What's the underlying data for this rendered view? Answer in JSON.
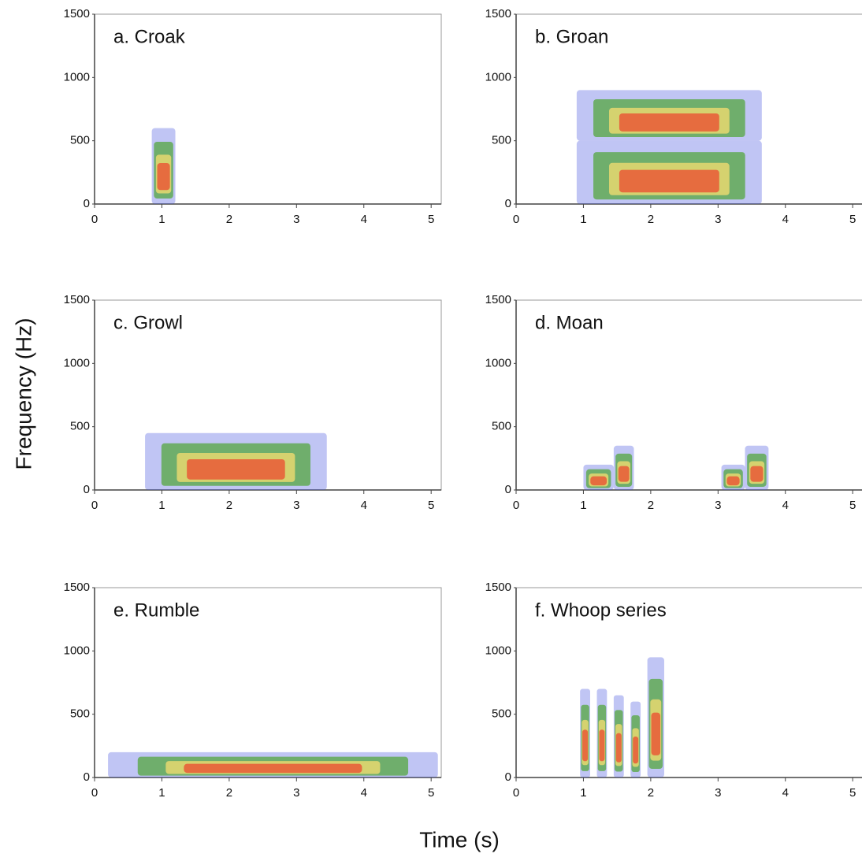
{
  "x_label": "Time (s)",
  "y_label": "Frequency (Hz)",
  "chart_data": [
    {
      "type": "spectrogram",
      "title": "a. Croak",
      "xlim": [
        0,
        5.15
      ],
      "ylim": [
        0,
        1500
      ],
      "xticks": [
        0,
        1,
        2,
        3,
        4,
        5
      ],
      "yticks": [
        0,
        500,
        1000,
        1500
      ],
      "colors": [
        "#4a5ae0",
        "#5aa84a",
        "#e8d870",
        "#e8603a"
      ],
      "calls": [
        {
          "start": 0.85,
          "end": 1.2,
          "low": 0,
          "high": 600
        }
      ]
    },
    {
      "type": "spectrogram",
      "title": "b. Groan",
      "xlim": [
        0,
        5.15
      ],
      "ylim": [
        0,
        1500
      ],
      "xticks": [
        0,
        1,
        2,
        3,
        4,
        5
      ],
      "yticks": [
        0,
        500,
        1000,
        1500
      ],
      "colors": [
        "#4a5ae0",
        "#5aa84a",
        "#e8d870",
        "#e8603a"
      ],
      "calls": [
        {
          "start": 0.9,
          "end": 3.65,
          "low": 0,
          "high": 500
        },
        {
          "start": 0.9,
          "end": 3.65,
          "low": 500,
          "high": 900
        }
      ]
    },
    {
      "type": "spectrogram",
      "title": "c. Growl",
      "xlim": [
        0,
        5.15
      ],
      "ylim": [
        0,
        1500
      ],
      "xticks": [
        0,
        1,
        2,
        3,
        4,
        5
      ],
      "yticks": [
        0,
        500,
        1000,
        1500
      ],
      "colors": [
        "#4a5ae0",
        "#5aa84a",
        "#e8d870",
        "#e8603a"
      ],
      "calls": [
        {
          "start": 0.75,
          "end": 3.45,
          "low": 0,
          "high": 450
        }
      ]
    },
    {
      "type": "spectrogram",
      "title": "d. Moan",
      "xlim": [
        0,
        5.15
      ],
      "ylim": [
        0,
        1500
      ],
      "xticks": [
        0,
        1,
        2,
        3,
        4,
        5
      ],
      "yticks": [
        0,
        500,
        1000,
        1500
      ],
      "colors": [
        "#4a5ae0",
        "#5aa84a",
        "#e8d870",
        "#e8603a"
      ],
      "calls": [
        {
          "start": 1.0,
          "end": 1.45,
          "low": 0,
          "high": 200
        },
        {
          "start": 1.45,
          "end": 1.75,
          "low": 0,
          "high": 350
        },
        {
          "start": 3.05,
          "end": 3.4,
          "low": 0,
          "high": 200
        },
        {
          "start": 3.4,
          "end": 3.75,
          "low": 0,
          "high": 350
        }
      ]
    },
    {
      "type": "spectrogram",
      "title": "e. Rumble",
      "xlim": [
        0,
        5.15
      ],
      "ylim": [
        0,
        1500
      ],
      "xticks": [
        0,
        1,
        2,
        3,
        4,
        5
      ],
      "yticks": [
        0,
        500,
        1000,
        1500
      ],
      "colors": [
        "#4a5ae0",
        "#5aa84a",
        "#e8d870",
        "#e8603a"
      ],
      "calls": [
        {
          "start": 0.2,
          "end": 5.1,
          "low": 0,
          "high": 200
        }
      ]
    },
    {
      "type": "spectrogram",
      "title": "f. Whoop series",
      "xlim": [
        0,
        5.15
      ],
      "ylim": [
        0,
        1500
      ],
      "xticks": [
        0,
        1,
        2,
        3,
        4,
        5
      ],
      "yticks": [
        0,
        500,
        1000,
        1500
      ],
      "colors": [
        "#4a5ae0",
        "#5aa84a",
        "#e8d870",
        "#e8603a"
      ],
      "calls": [
        {
          "start": 0.95,
          "end": 1.1,
          "low": 0,
          "high": 700
        },
        {
          "start": 1.2,
          "end": 1.35,
          "low": 0,
          "high": 700
        },
        {
          "start": 1.45,
          "end": 1.6,
          "low": 0,
          "high": 650
        },
        {
          "start": 1.7,
          "end": 1.85,
          "low": 0,
          "high": 600
        },
        {
          "start": 1.95,
          "end": 2.2,
          "low": 0,
          "high": 950
        }
      ]
    }
  ]
}
